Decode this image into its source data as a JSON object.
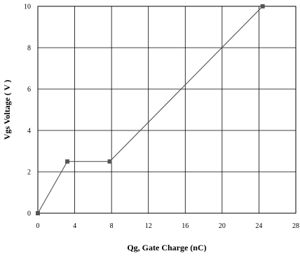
{
  "chart_data": {
    "type": "line",
    "title": "",
    "xlabel": "Qg, Gate Charge (nC)",
    "ylabel": "Vgs Voltage ( V )",
    "xlim": [
      0,
      28
    ],
    "ylim": [
      0,
      10
    ],
    "x_ticks": [
      0,
      4,
      8,
      12,
      16,
      20,
      24,
      28
    ],
    "y_ticks": [
      0,
      2,
      4,
      6,
      8,
      10
    ],
    "grid": true,
    "legend": "none",
    "series": [
      {
        "x": [
          0,
          3.2,
          7.8,
          24.4
        ],
        "y": [
          0,
          2.5,
          2.5,
          10
        ],
        "line_color": "#444444",
        "marker_color": "#555555",
        "marker": "square"
      }
    ]
  }
}
